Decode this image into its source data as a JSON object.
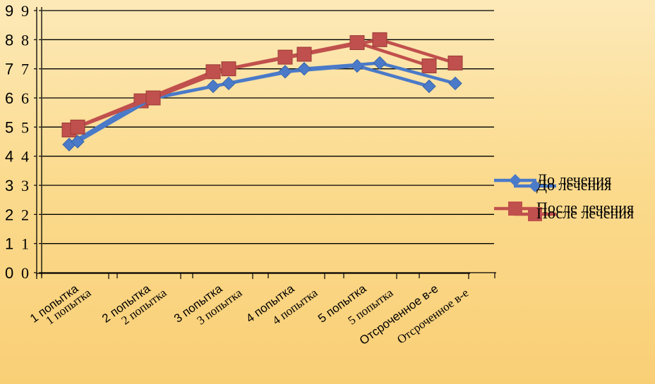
{
  "chart_data": [
    {
      "type": "line",
      "categories": [
        "1 попытка",
        "2 попытка",
        "3 попытка",
        "4 попытка",
        "5 попытка",
        "Отсроченное в-е"
      ],
      "ylim": [
        0,
        9
      ],
      "yticks": [
        0,
        1,
        2,
        3,
        4,
        5,
        6,
        7,
        8,
        9
      ],
      "grid": true,
      "legend": "right",
      "series": [
        {
          "name": "До лечения",
          "values": [
            4.4,
            5.9,
            6.4,
            6.9,
            7.1,
            6.4
          ],
          "color": "#4a7ac8",
          "marker": "diamond"
        },
        {
          "name": "После лечения",
          "values": [
            4.9,
            5.9,
            6.9,
            7.4,
            7.9,
            7.1
          ],
          "color": "#c0504d",
          "marker": "square"
        }
      ]
    },
    {
      "type": "line",
      "categories": [
        "1 попытка",
        "2 попытка",
        "3 попытка",
        "4 попытка",
        "5 попытка",
        "Отсроченное в-е"
      ],
      "ylim": [
        0,
        9
      ],
      "yticks": [
        0,
        1,
        2,
        3,
        4,
        5,
        6,
        7,
        8,
        9
      ],
      "grid": true,
      "legend": "right",
      "series": [
        {
          "name": "До лечения",
          "values": [
            4.5,
            6.0,
            6.5,
            7.0,
            7.2,
            6.5
          ],
          "color": "#4a7ac8",
          "marker": "diamond"
        },
        {
          "name": "После лечения",
          "values": [
            5.0,
            6.0,
            7.0,
            7.5,
            8.0,
            7.2
          ],
          "color": "#c0504d",
          "marker": "square"
        }
      ]
    }
  ]
}
